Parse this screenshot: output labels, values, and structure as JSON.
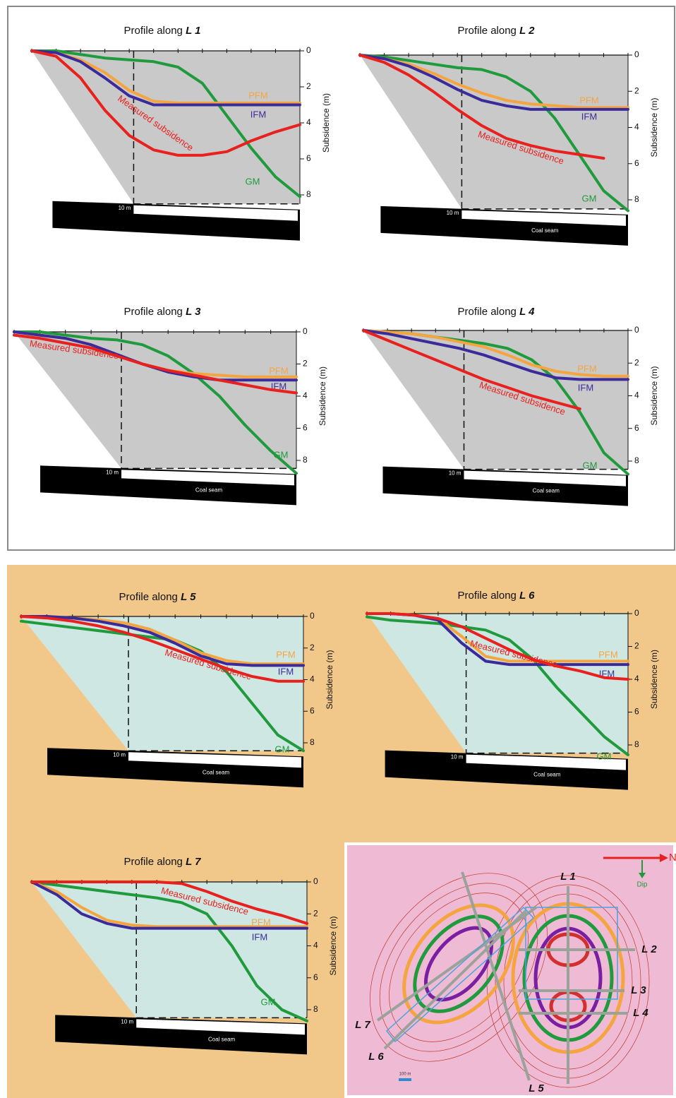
{
  "chart_data": [
    {
      "type": "line",
      "title": "Profile along",
      "line_name": "L 1",
      "y_label": "Subsidence (m)",
      "scale_label": "10 m",
      "categories": [
        null,
        null,
        null,
        null,
        null,
        null,
        null,
        null,
        null,
        null,
        null,
        null
      ],
      "series": [
        {
          "name": "Measured subsidence",
          "color": "#e8201e",
          "values": [
            0,
            0.3,
            1.5,
            3.3,
            4.7,
            5.5,
            5.8,
            5.8,
            5.6,
            5.0,
            4.5,
            4.1
          ]
        },
        {
          "name": "IFM",
          "color": "#3a2a9a",
          "values": [
            0,
            0.1,
            0.6,
            1.5,
            2.5,
            3.0,
            3.0,
            3.0,
            3.0,
            3.0,
            3.0,
            3.0
          ]
        },
        {
          "name": "PFM",
          "color": "#f5a540",
          "values": [
            0,
            0.1,
            0.5,
            1.2,
            2.2,
            2.8,
            2.9,
            2.9,
            2.9,
            2.9,
            2.9,
            2.9
          ]
        },
        {
          "name": "GM",
          "color": "#1f9a3c",
          "values": [
            0,
            0,
            0.2,
            0.4,
            0.5,
            0.6,
            0.9,
            1.8,
            3.6,
            5.4,
            7.0,
            8.1
          ]
        }
      ],
      "ylim": [
        0,
        8.5
      ],
      "yticks": [
        0,
        2,
        4,
        6,
        8
      ],
      "y_inverted": true,
      "area_color": "#c9c9c9"
    },
    {
      "type": "line",
      "title": "Profile along",
      "line_name": "L 2",
      "y_label": "Subsidence (m)",
      "scale_label": "10 m",
      "coal_seam_label": "Coal seam",
      "categories": [
        null,
        null,
        null,
        null,
        null,
        null,
        null,
        null,
        null,
        null,
        null,
        null
      ],
      "series": [
        {
          "name": "Measured subsidence",
          "color": "#e8201e",
          "values": [
            0,
            0.4,
            1.1,
            2.0,
            3.0,
            3.9,
            4.6,
            5.0,
            5.3,
            5.5,
            5.7,
            null
          ]
        },
        {
          "name": "IFM",
          "color": "#3a2a9a",
          "values": [
            0,
            0.2,
            0.6,
            1.2,
            1.9,
            2.5,
            2.8,
            3.0,
            3.0,
            3.0,
            3.0,
            3.0
          ]
        },
        {
          "name": "PFM",
          "color": "#f5a540",
          "values": [
            0,
            0.2,
            0.5,
            1.0,
            1.6,
            2.1,
            2.5,
            2.7,
            2.8,
            2.9,
            2.9,
            2.9
          ]
        },
        {
          "name": "GM",
          "color": "#1f9a3c",
          "values": [
            0,
            0.1,
            0.3,
            0.5,
            0.7,
            0.8,
            1.2,
            2.0,
            3.5,
            5.5,
            7.5,
            8.6
          ]
        }
      ],
      "ylim": [
        0,
        8.5
      ],
      "yticks": [
        0,
        2,
        4,
        6,
        8
      ],
      "y_inverted": true,
      "area_color": "#c9c9c9"
    },
    {
      "type": "line",
      "title": "Profile along",
      "line_name": "L 3",
      "y_label": "Subsidence (m)",
      "scale_label": "10 m",
      "coal_seam_label": "Coal seam",
      "categories": [
        null,
        null,
        null,
        null,
        null,
        null,
        null,
        null,
        null,
        null,
        null,
        null
      ],
      "series": [
        {
          "name": "Measured subsidence",
          "color": "#e8201e",
          "values": [
            0.2,
            0.4,
            0.7,
            1.0,
            1.5,
            2.0,
            2.4,
            2.7,
            3.0,
            3.3,
            3.6,
            3.8
          ]
        },
        {
          "name": "IFM",
          "color": "#3a2a9a",
          "values": [
            0,
            0.2,
            0.4,
            0.8,
            1.4,
            2.0,
            2.5,
            2.8,
            3.0,
            3.0,
            3.0,
            3.0
          ]
        },
        {
          "name": "PFM",
          "color": "#f5a540",
          "values": [
            0,
            0.2,
            0.4,
            0.8,
            1.4,
            2.0,
            2.4,
            2.6,
            2.7,
            2.8,
            2.8,
            2.8
          ]
        },
        {
          "name": "GM",
          "color": "#1f9a3c",
          "values": [
            0,
            0,
            0.2,
            0.4,
            0.5,
            0.8,
            1.5,
            2.6,
            4.0,
            5.8,
            7.4,
            8.8
          ]
        }
      ],
      "ylim": [
        0,
        8.5
      ],
      "yticks": [
        0,
        2,
        4,
        6,
        8
      ],
      "y_inverted": true,
      "area_color": "#c9c9c9"
    },
    {
      "type": "line",
      "title": "Profile along",
      "line_name": "L 4",
      "y_label": "Subsidence (m)",
      "scale_label": "10 m",
      "coal_seam_label": "Coal seam",
      "categories": [
        null,
        null,
        null,
        null,
        null,
        null,
        null,
        null,
        null,
        null,
        null,
        null
      ],
      "series": [
        {
          "name": "Measured subsidence",
          "color": "#e8201e",
          "values": [
            0,
            0.6,
            1.2,
            1.8,
            2.4,
            3.0,
            3.5,
            4.0,
            4.4,
            4.8,
            null,
            null
          ]
        },
        {
          "name": "IFM",
          "color": "#3a2a9a",
          "values": [
            0,
            0.2,
            0.5,
            0.8,
            1.1,
            1.5,
            2.0,
            2.5,
            2.9,
            3.0,
            3.0,
            3.0
          ]
        },
        {
          "name": "PFM",
          "color": "#f5a540",
          "values": [
            0,
            0.1,
            0.2,
            0.4,
            0.7,
            1.0,
            1.5,
            2.1,
            2.5,
            2.7,
            2.8,
            2.8
          ]
        },
        {
          "name": "GM",
          "color": "#1f9a3c",
          "values": [
            0,
            0.1,
            0.2,
            0.4,
            0.6,
            0.8,
            1.1,
            1.8,
            3.0,
            5.0,
            7.5,
            8.8
          ]
        }
      ],
      "ylim": [
        0,
        8.5
      ],
      "yticks": [
        0,
        2,
        4,
        6,
        8
      ],
      "y_inverted": true,
      "area_color": "#c9c9c9"
    },
    {
      "type": "line",
      "title": "Profile along",
      "line_name": "L 5",
      "y_label": "Subsidence (m)",
      "scale_label": "10 m",
      "coal_seam_label": "Coal seam",
      "categories": [
        null,
        null,
        null,
        null,
        null,
        null,
        null,
        null,
        null,
        null,
        null,
        null
      ],
      "series": [
        {
          "name": "Measured subsidence",
          "color": "#e8201e",
          "values": [
            0,
            0.1,
            0.3,
            0.6,
            1.0,
            1.5,
            2.1,
            2.7,
            3.3,
            3.8,
            4.1,
            4.1
          ]
        },
        {
          "name": "IFM",
          "color": "#3a2a9a",
          "values": [
            0,
            0,
            0.1,
            0.3,
            0.6,
            1.0,
            1.7,
            2.5,
            3.0,
            3.1,
            3.1,
            3.1
          ]
        },
        {
          "name": "PFM",
          "color": "#f5a540",
          "values": [
            0,
            0,
            0.1,
            0.2,
            0.4,
            0.8,
            1.5,
            2.3,
            2.8,
            3.0,
            3.0,
            3.0
          ]
        },
        {
          "name": "GM",
          "color": "#1f9a3c",
          "values": [
            0.3,
            0.5,
            0.7,
            0.9,
            1.1,
            1.3,
            1.5,
            2.2,
            3.5,
            5.5,
            7.5,
            8.5
          ]
        }
      ],
      "ylim": [
        0,
        8.5
      ],
      "yticks": [
        0,
        2,
        4,
        6,
        8
      ],
      "y_inverted": true,
      "area_color": "#cfe7e2"
    },
    {
      "type": "line",
      "title": "Profile along",
      "line_name": "L 6",
      "y_label": "Subsidence (m)",
      "scale_label": "10 m",
      "coal_seam_label": "Coal seam",
      "categories": [
        null,
        null,
        null,
        null,
        null,
        null,
        null,
        null,
        null,
        null,
        null,
        null
      ],
      "series": [
        {
          "name": "Measured subsidence",
          "color": "#e8201e",
          "values": [
            0,
            0,
            0.1,
            0.3,
            0.8,
            1.5,
            2.2,
            2.8,
            3.2,
            3.5,
            3.9,
            4.0
          ]
        },
        {
          "name": "IFM",
          "color": "#3a2a9a",
          "values": [
            0,
            0,
            0.1,
            0.4,
            1.8,
            2.9,
            3.1,
            3.1,
            3.1,
            3.1,
            3.1,
            3.1
          ]
        },
        {
          "name": "PFM",
          "color": "#f5a540",
          "values": [
            0,
            0,
            0.1,
            0.3,
            1.4,
            2.6,
            2.9,
            2.9,
            2.9,
            2.9,
            2.9,
            2.9
          ]
        },
        {
          "name": "GM",
          "color": "#1f9a3c",
          "values": [
            0.2,
            0.4,
            0.5,
            0.6,
            0.8,
            1.0,
            1.6,
            2.8,
            4.5,
            6.0,
            7.5,
            8.6
          ]
        }
      ],
      "ylim": [
        0,
        8.5
      ],
      "yticks": [
        0,
        2,
        4,
        6,
        8
      ],
      "y_inverted": true,
      "area_color": "#cfe7e2"
    },
    {
      "type": "line",
      "title": "Profile along",
      "line_name": "L 7",
      "y_label": "Subsidence (m)",
      "scale_label": "10 m",
      "coal_seam_label": "Coal seam",
      "categories": [
        null,
        null,
        null,
        null,
        null,
        null,
        null,
        null,
        null,
        null,
        null,
        null
      ],
      "series": [
        {
          "name": "Measured subsidence",
          "color": "#e8201e",
          "values": [
            0,
            0,
            0,
            0,
            0,
            0,
            0.1,
            0.6,
            1.2,
            1.7,
            2.1,
            2.6
          ]
        },
        {
          "name": "IFM",
          "color": "#3a2a9a",
          "values": [
            0,
            0.8,
            2.0,
            2.6,
            2.9,
            2.9,
            2.9,
            2.9,
            2.9,
            2.9,
            2.9,
            2.9
          ]
        },
        {
          "name": "PFM",
          "color": "#f5a540",
          "values": [
            0,
            0.6,
            1.6,
            2.4,
            2.7,
            2.8,
            2.8,
            2.8,
            2.8,
            2.8,
            2.8,
            2.8
          ]
        },
        {
          "name": "GM",
          "color": "#1f9a3c",
          "values": [
            0,
            0.2,
            0.4,
            0.6,
            0.8,
            1.0,
            1.3,
            2.0,
            4.0,
            6.5,
            8.0,
            8.7
          ]
        }
      ],
      "ylim": [
        0,
        8.5
      ],
      "yticks": [
        0,
        2,
        4,
        6,
        8
      ],
      "y_inverted": true,
      "area_color": "#cfe7e2"
    }
  ],
  "map": {
    "north": "N",
    "dip": "Dip",
    "scale_label": "100 m"
  }
}
